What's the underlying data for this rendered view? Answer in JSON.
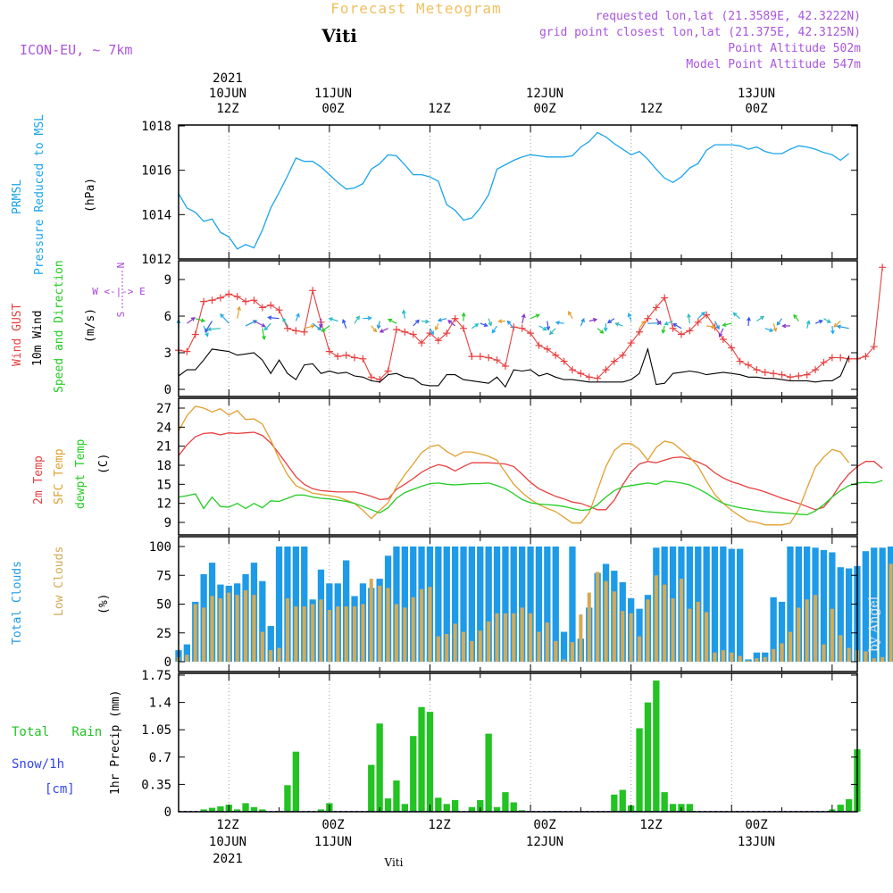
{
  "header": {
    "title": "Forecast Meteogram",
    "location": "Viti",
    "model": "ICON-EU, ~ 7km",
    "requested": "requested lon,lat (21.3589E, 42.3222N)",
    "grid": "grid point closest lon,lat (21.375E, 42.3125N)",
    "altitude": "Point Altitude 502m",
    "model_altitude": "Model Point Altitude 547m",
    "watermark": "by Angel",
    "footer": "Viti"
  },
  "time_axis": {
    "start_hour": 6,
    "end_hour": 87,
    "year": "2021",
    "labels": [
      {
        "hour": 12,
        "top": "12Z",
        "mid": "10JUN",
        "year": "2021"
      },
      {
        "hour": 24,
        "top": "00Z",
        "mid": "11JUN"
      },
      {
        "hour": 36,
        "top": "12Z",
        "mid": ""
      },
      {
        "hour": 48,
        "top": "00Z",
        "mid": "12JUN"
      },
      {
        "hour": 60,
        "top": "12Z",
        "mid": ""
      },
      {
        "hour": 72,
        "top": "00Z",
        "mid": "13JUN"
      }
    ]
  },
  "labels": {
    "p1": [
      "PRMSL",
      "Pressure Reduced to MSL",
      "(hPa)"
    ],
    "p2": [
      "Wind GUST",
      "10m Wind",
      "Speed and Direction",
      "(m/s)"
    ],
    "compass": [
      "N",
      "W <-|-> E",
      "S"
    ],
    "p3": [
      "2m Temp",
      "SFC Temp",
      "dewpt Temp",
      "(C)"
    ],
    "p4": [
      "Total Clouds",
      "Low Clouds",
      "(%)"
    ],
    "p5": [
      "Total   Rain",
      "Snow/1h",
      "[cm]",
      "1hr Precip (mm)"
    ]
  },
  "colors": {
    "pressure": "#1ba4ea",
    "gust": "#e84040",
    "wind": "#000000",
    "t2m": "#e84040",
    "tsfc": "#e0a030",
    "dewpt": "#22cc22",
    "total_cloud": "#1e9be8",
    "low_cloud": "#d4aa55",
    "rain": "#22c322",
    "snow": "#3344ee",
    "compass": "#aa44dd",
    "header": "#aa55dd",
    "title": "#f0c060"
  },
  "chart_data": [
    {
      "type": "line",
      "title": "PRMSL Pressure Reduced to MSL",
      "ylabel": "(hPa)",
      "ylim": [
        1012,
        1018
      ],
      "yticks": [
        1012,
        1014,
        1016,
        1018
      ],
      "x_start": 6,
      "x_step": 1,
      "series": [
        {
          "name": "PRMSL",
          "values": [
            1014.95,
            1014.3,
            1014.1,
            1013.7,
            1013.8,
            1013.2,
            1013.0,
            1012.45,
            1012.65,
            1012.5,
            1013.3,
            1014.3,
            1015.0,
            1015.75,
            1016.55,
            1016.4,
            1016.4,
            1016.15,
            1015.8,
            1015.45,
            1015.15,
            1015.2,
            1015.4,
            1016.05,
            1016.3,
            1016.7,
            1016.65,
            1016.25,
            1015.8,
            1015.8,
            1015.7,
            1015.5,
            1014.45,
            1014.2,
            1013.75,
            1013.85,
            1014.3,
            1014.9,
            1016.05,
            1016.25,
            1016.45,
            1016.6,
            1016.7,
            1016.65,
            1016.6,
            1016.6,
            1016.6,
            1016.65,
            1017.05,
            1017.3,
            1017.7,
            1017.5,
            1017.2,
            1016.95,
            1016.7,
            1016.85,
            1016.5,
            1016.05,
            1015.65,
            1015.45,
            1015.7,
            1016.1,
            1016.3,
            1016.9,
            1017.15,
            1017.15,
            1017.15,
            1017.1,
            1016.95,
            1017.05,
            1016.85,
            1016.75,
            1016.75,
            1016.95,
            1017.1,
            1017.05,
            1016.95,
            1016.8,
            1016.7,
            1016.45,
            1016.75
          ]
        }
      ]
    },
    {
      "type": "line",
      "title": "Wind GUST / 10m Wind Speed and Direction",
      "ylabel": "(m/s)",
      "ylim": [
        0,
        10
      ],
      "yticks": [
        0,
        3,
        6,
        9
      ],
      "x_start": 6,
      "x_step": 1,
      "series": [
        {
          "name": "Wind GUST",
          "values": [
            3.2,
            3.1,
            4.5,
            7.2,
            7.3,
            7.5,
            7.8,
            7.6,
            7.2,
            7.3,
            6.7,
            6.9,
            6.5,
            5.0,
            4.8,
            4.7,
            8.1,
            5.5,
            3.1,
            2.7,
            2.8,
            2.6,
            2.5,
            1.0,
            0.8,
            1.5,
            4.9,
            4.7,
            4.5,
            3.8,
            4.6,
            4.0,
            4.6,
            5.8,
            5.0,
            2.7,
            2.7,
            2.6,
            2.4,
            1.9,
            5.1,
            5.0,
            4.6,
            3.6,
            3.3,
            2.8,
            2.3,
            1.6,
            1.3,
            1.0,
            0.9,
            1.6,
            2.3,
            2.8,
            3.8,
            4.7,
            5.8,
            6.7,
            7.5,
            5.0,
            4.5,
            4.8,
            5.5,
            6.1,
            5.1,
            4.1,
            3.4,
            2.3,
            2.0,
            1.6,
            1.4,
            1.3,
            1.2,
            1.0,
            1.1,
            1.2,
            1.6,
            2.2,
            2.6,
            2.6,
            2.5,
            2.5,
            2.7,
            3.5,
            10.0
          ]
        },
        {
          "name": "10m Wind",
          "values": [
            1.1,
            1.6,
            1.6,
            2.4,
            3.3,
            3.2,
            3.1,
            2.8,
            2.9,
            3.0,
            2.4,
            1.3,
            2.4,
            1.3,
            0.8,
            2.0,
            2.1,
            1.3,
            1.5,
            1.3,
            1.4,
            1.1,
            1.0,
            0.7,
            0.6,
            1.2,
            1.3,
            1.0,
            0.9,
            0.4,
            0.3,
            0.3,
            1.2,
            1.2,
            0.8,
            0.7,
            0.6,
            0.5,
            1.0,
            0.2,
            1.6,
            1.5,
            1.6,
            1.1,
            1.3,
            1.0,
            0.8,
            0.8,
            0.7,
            0.6,
            0.6,
            0.6,
            0.6,
            0.6,
            0.8,
            1.3,
            3.3,
            0.4,
            0.5,
            1.3,
            1.4,
            1.5,
            1.4,
            1.2,
            1.3,
            1.4,
            1.3,
            1.2,
            1.0,
            1.0,
            0.9,
            0.9,
            0.8,
            0.7,
            0.7,
            0.7,
            0.6,
            0.7,
            0.7,
            1.1,
            2.7
          ]
        }
      ]
    },
    {
      "type": "line",
      "title": "2m Temp / SFC Temp / dewpt Temp",
      "ylabel": "(C)",
      "ylim": [
        7,
        28.5
      ],
      "yticks": [
        9,
        12,
        15,
        18,
        21,
        24,
        27
      ],
      "x_start": 6,
      "x_step": 1,
      "series": [
        {
          "name": "2m Temp",
          "values": [
            19.5,
            21.2,
            22.5,
            23.0,
            23.1,
            22.8,
            23.1,
            23.0,
            23.1,
            23.2,
            22.7,
            21.5,
            19.8,
            18.0,
            16.2,
            15.0,
            14.3,
            14.0,
            13.9,
            13.8,
            13.8,
            13.8,
            13.5,
            13.1,
            12.6,
            12.7,
            14.2,
            15.0,
            15.9,
            16.9,
            17.6,
            18.1,
            17.8,
            17.1,
            17.8,
            18.4,
            18.4,
            18.4,
            18.3,
            18.2,
            17.8,
            16.6,
            15.3,
            14.3,
            13.7,
            13.1,
            12.7,
            12.2,
            12.0,
            11.5,
            11.0,
            11.0,
            12.5,
            14.9,
            16.9,
            18.2,
            18.6,
            18.4,
            18.8,
            19.2,
            19.3,
            19.0,
            18.5,
            17.9,
            16.8,
            16.0,
            15.4,
            15.0,
            14.5,
            14.2,
            13.8,
            13.3,
            12.8,
            12.4,
            12.0,
            11.5,
            11.0,
            11.4,
            13.0,
            15.0,
            16.6,
            17.8,
            18.6,
            18.6,
            17.5
          ]
        },
        {
          "name": "SFC Temp",
          "values": [
            23.4,
            25.8,
            27.3,
            27.0,
            26.4,
            26.9,
            25.9,
            26.6,
            25.2,
            25.3,
            24.5,
            22.0,
            19.0,
            16.5,
            14.8,
            14.2,
            13.6,
            13.4,
            13.2,
            13.0,
            12.5,
            12.0,
            10.9,
            9.6,
            10.9,
            12.1,
            14.6,
            16.5,
            18.2,
            20.0,
            20.9,
            21.2,
            20.2,
            19.4,
            20.1,
            20.1,
            19.8,
            19.4,
            18.8,
            16.9,
            15.0,
            13.7,
            12.6,
            11.8,
            11.2,
            10.7,
            9.8,
            8.9,
            8.9,
            10.5,
            14.1,
            17.8,
            20.3,
            21.4,
            21.4,
            20.5,
            18.8,
            20.8,
            21.8,
            21.5,
            20.4,
            19.3,
            17.8,
            15.5,
            13.4,
            12.0,
            10.9,
            10.0,
            9.2,
            9.0,
            8.6,
            8.6,
            8.6,
            8.9,
            11.0,
            14.4,
            17.7,
            19.3,
            20.5,
            20.1,
            18.4
          ]
        },
        {
          "name": "dewpt Temp",
          "values": [
            13.0,
            13.2,
            13.5,
            11.2,
            13.0,
            11.5,
            11.4,
            12.0,
            11.2,
            12.0,
            11.3,
            12.4,
            12.3,
            12.8,
            13.3,
            13.3,
            13.0,
            12.8,
            12.7,
            12.5,
            12.3,
            12.0,
            11.5,
            11.0,
            10.5,
            11.3,
            12.8,
            13.7,
            14.2,
            14.7,
            15.1,
            15.2,
            15.0,
            14.9,
            15.0,
            15.1,
            15.1,
            15.2,
            14.8,
            14.3,
            13.5,
            12.6,
            12.1,
            11.9,
            11.8,
            11.7,
            11.5,
            11.2,
            10.9,
            11.0,
            11.8,
            13.0,
            14.0,
            14.6,
            14.8,
            15.0,
            15.2,
            15.0,
            15.5,
            15.4,
            15.2,
            14.9,
            14.3,
            13.6,
            12.7,
            12.0,
            11.6,
            11.3,
            11.1,
            10.9,
            10.7,
            10.6,
            10.5,
            10.4,
            10.3,
            10.2,
            10.8,
            11.8,
            13.0,
            14.0,
            14.8,
            15.2,
            15.3,
            15.2,
            15.6
          ]
        }
      ]
    },
    {
      "type": "bar",
      "title": "Total Clouds / Low Clouds",
      "ylabel": "(%)",
      "ylim": [
        0,
        100
      ],
      "yticks": [
        0,
        25,
        50,
        75,
        100
      ],
      "x_start": 6,
      "x_step": 1,
      "series": [
        {
          "name": "Total Clouds",
          "values": [
            10,
            15,
            52,
            76,
            86,
            67,
            66,
            68,
            76,
            86,
            70,
            31,
            100,
            100,
            100,
            100,
            54,
            80,
            68,
            68,
            88,
            57,
            68,
            64,
            72,
            92,
            100,
            100,
            100,
            100,
            100,
            100,
            100,
            100,
            100,
            100,
            100,
            100,
            100,
            100,
            100,
            100,
            100,
            100,
            100,
            100,
            26,
            100,
            20,
            47,
            77,
            85,
            79,
            69,
            55,
            46,
            58,
            99,
            100,
            100,
            100,
            100,
            100,
            100,
            100,
            100,
            98,
            98,
            2,
            8,
            8,
            56,
            52,
            100,
            100,
            100,
            99,
            97,
            95,
            82,
            81,
            83,
            96,
            99,
            99,
            100,
            100
          ]
        },
        {
          "name": "Low Clouds",
          "values": [
            4,
            6,
            50,
            47,
            57,
            55,
            60,
            58,
            62,
            58,
            26,
            10,
            12,
            55,
            48,
            48,
            50,
            54,
            45,
            48,
            48,
            48,
            50,
            72,
            66,
            64,
            50,
            47,
            56,
            63,
            65,
            22,
            24,
            33,
            26,
            18,
            27,
            35,
            42,
            42,
            42,
            47,
            42,
            26,
            34,
            18,
            2,
            17,
            41,
            60,
            78,
            70,
            61,
            44,
            42,
            22,
            54,
            75,
            67,
            55,
            72,
            46,
            52,
            43,
            8,
            10,
            8,
            5,
            1,
            3,
            4,
            11,
            16,
            26,
            47,
            54,
            58,
            15,
            46,
            23,
            12,
            10,
            9,
            3,
            4,
            85,
            85
          ]
        }
      ]
    },
    {
      "type": "bar",
      "title": "1hr Precip",
      "ylabel": "1hr Precip (mm)",
      "ylim": [
        0,
        1.75
      ],
      "yticks": [
        0,
        0.35,
        0.7,
        1.05,
        1.4,
        1.75
      ],
      "x_start": 6,
      "x_step": 1,
      "series": [
        {
          "name": "Total Rain",
          "values": [
            0,
            0,
            0,
            0.03,
            0.05,
            0.07,
            0.09,
            0.03,
            0.11,
            0.06,
            0.03,
            0,
            0,
            0.34,
            0.77,
            0,
            0,
            0.03,
            0.11,
            0,
            0,
            0,
            0,
            0.6,
            1.13,
            0.17,
            0.4,
            0.1,
            0.97,
            1.34,
            1.28,
            0.18,
            0.1,
            0.15,
            0,
            0.06,
            0.15,
            1.0,
            0.06,
            0.25,
            0.12,
            0.02,
            0,
            0,
            0,
            0.01,
            0,
            0,
            0,
            0,
            0,
            0,
            0.22,
            0.28,
            0.08,
            1.07,
            1.4,
            1.68,
            0.25,
            0.1,
            0.1,
            0.1,
            0,
            0,
            0,
            0,
            0,
            0,
            0,
            0,
            0,
            0,
            0,
            0,
            0,
            0,
            0,
            0,
            0.03,
            0.09,
            0.16,
            0.8
          ]
        },
        {
          "name": "Snow/1h",
          "values": [
            0,
            0,
            0,
            0,
            0,
            0,
            0,
            0,
            0,
            0,
            0,
            0,
            0,
            0,
            0,
            0,
            0,
            0,
            0,
            0,
            0,
            0,
            0,
            0,
            0,
            0,
            0,
            0,
            0,
            0,
            0,
            0,
            0,
            0,
            0,
            0,
            0,
            0,
            0,
            0,
            0,
            0,
            0,
            0,
            0,
            0,
            0,
            0,
            0,
            0,
            0,
            0,
            0,
            0,
            0,
            0,
            0,
            0,
            0,
            0,
            0,
            0,
            0,
            0,
            0,
            0,
            0,
            0,
            0,
            0,
            0,
            0,
            0,
            0,
            0,
            0,
            0,
            0,
            0,
            0,
            0,
            0
          ]
        }
      ]
    }
  ]
}
